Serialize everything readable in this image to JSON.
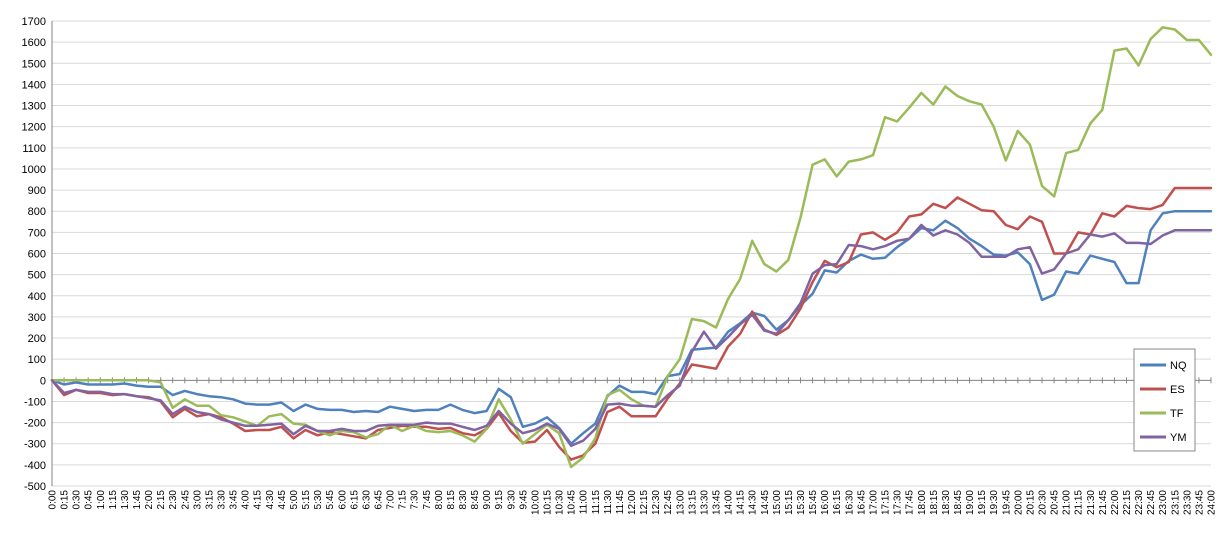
{
  "chart_data": {
    "type": "line",
    "title": "",
    "xlabel": "",
    "ylabel": "",
    "ylim": [
      -500,
      1700
    ],
    "ytick_step": 100,
    "grid": "horizontal",
    "legend_position": "right",
    "x": [
      "0:00",
      "0:15",
      "0:30",
      "0:45",
      "1:00",
      "1:15",
      "1:30",
      "1:45",
      "2:00",
      "2:15",
      "2:30",
      "2:45",
      "3:00",
      "3:15",
      "3:30",
      "3:45",
      "4:00",
      "4:15",
      "4:30",
      "4:45",
      "5:00",
      "5:15",
      "5:30",
      "5:45",
      "6:00",
      "6:15",
      "6:30",
      "6:45",
      "7:00",
      "7:15",
      "7:30",
      "7:45",
      "8:00",
      "8:15",
      "8:30",
      "8:45",
      "9:00",
      "9:15",
      "9:30",
      "9:45",
      "10:00",
      "10:15",
      "10:30",
      "10:45",
      "11:00",
      "11:15",
      "11:30",
      "11:45",
      "12:00",
      "12:15",
      "12:30",
      "12:45",
      "13:00",
      "13:15",
      "13:30",
      "13:45",
      "14:00",
      "14:15",
      "14:30",
      "14:45",
      "15:00",
      "15:15",
      "15:30",
      "15:45",
      "16:00",
      "16:15",
      "16:30",
      "16:45",
      "17:00",
      "17:15",
      "17:30",
      "17:45",
      "18:00",
      "18:15",
      "18:30",
      "18:45",
      "19:00",
      "19:15",
      "19:30",
      "19:45",
      "20:00",
      "20:15",
      "20:30",
      "20:45",
      "21:00",
      "21:15",
      "21:30",
      "21:45",
      "22:00",
      "22:15",
      "22:30",
      "22:45",
      "23:00",
      "23:15",
      "23:30",
      "23:45",
      "24:00"
    ],
    "series": [
      {
        "name": "NQ",
        "color": "#4F81BD",
        "values": [
          0,
          -20,
          -10,
          -20,
          -20,
          -20,
          -15,
          -25,
          -30,
          -30,
          -70,
          -50,
          -65,
          -75,
          -80,
          -90,
          -110,
          -115,
          -115,
          -105,
          -145,
          -115,
          -135,
          -140,
          -140,
          -150,
          -145,
          -150,
          -125,
          -135,
          -145,
          -140,
          -140,
          -115,
          -140,
          -155,
          -145,
          -40,
          -80,
          -220,
          -205,
          -175,
          -225,
          -300,
          -250,
          -205,
          -75,
          -25,
          -55,
          -55,
          -65,
          20,
          30,
          145,
          150,
          155,
          230,
          270,
          320,
          305,
          240,
          285,
          355,
          410,
          520,
          510,
          565,
          595,
          575,
          580,
          630,
          670,
          720,
          710,
          755,
          720,
          670,
          635,
          595,
          590,
          605,
          550,
          380,
          405,
          515,
          505,
          590,
          575,
          560,
          460,
          460,
          710,
          790,
          800,
          800,
          800,
          800
        ]
      },
      {
        "name": "ES",
        "color": "#C0504D",
        "values": [
          0,
          -70,
          -45,
          -60,
          -60,
          -70,
          -65,
          -75,
          -80,
          -100,
          -175,
          -135,
          -170,
          -160,
          -175,
          -205,
          -240,
          -235,
          -235,
          -220,
          -275,
          -235,
          -260,
          -245,
          -255,
          -265,
          -275,
          -235,
          -225,
          -215,
          -220,
          -220,
          -230,
          -225,
          -250,
          -260,
          -230,
          -155,
          -240,
          -295,
          -290,
          -235,
          -315,
          -375,
          -355,
          -300,
          -150,
          -125,
          -170,
          -170,
          -170,
          -85,
          -15,
          75,
          65,
          55,
          160,
          220,
          325,
          240,
          215,
          250,
          340,
          465,
          565,
          535,
          560,
          690,
          700,
          665,
          700,
          775,
          785,
          835,
          815,
          865,
          835,
          805,
          800,
          735,
          715,
          775,
          750,
          600,
          600,
          700,
          690,
          790,
          775,
          825,
          815,
          810,
          830,
          910,
          910,
          910,
          910
        ]
      },
      {
        "name": "TF",
        "color": "#9BBB59",
        "values": [
          0,
          0,
          0,
          0,
          0,
          0,
          0,
          0,
          0,
          -10,
          -130,
          -90,
          -120,
          -120,
          -165,
          -175,
          -195,
          -215,
          -170,
          -160,
          -205,
          -210,
          -240,
          -260,
          -240,
          -245,
          -270,
          -255,
          -210,
          -240,
          -215,
          -240,
          -245,
          -240,
          -260,
          -290,
          -230,
          -90,
          -185,
          -300,
          -255,
          -210,
          -250,
          -410,
          -365,
          -275,
          -70,
          -45,
          -90,
          -120,
          -125,
          20,
          100,
          290,
          280,
          250,
          385,
          480,
          660,
          550,
          515,
          570,
          770,
          1020,
          1045,
          965,
          1035,
          1045,
          1065,
          1245,
          1225,
          1290,
          1360,
          1305,
          1390,
          1345,
          1320,
          1305,
          1200,
          1040,
          1180,
          1115,
          920,
          870,
          1075,
          1090,
          1215,
          1280,
          1560,
          1570,
          1490,
          1615,
          1670,
          1660,
          1610,
          1610,
          1540
        ]
      },
      {
        "name": "YM",
        "color": "#8064A2",
        "values": [
          0,
          -60,
          -45,
          -55,
          -55,
          -65,
          -65,
          -75,
          -85,
          -95,
          -160,
          -125,
          -150,
          -160,
          -185,
          -200,
          -215,
          -215,
          -210,
          -205,
          -255,
          -215,
          -240,
          -240,
          -230,
          -240,
          -240,
          -215,
          -210,
          -210,
          -210,
          -200,
          -205,
          -205,
          -220,
          -235,
          -215,
          -145,
          -205,
          -250,
          -235,
          -205,
          -230,
          -310,
          -285,
          -230,
          -115,
          -110,
          -120,
          -120,
          -125,
          -70,
          -25,
          135,
          230,
          150,
          205,
          265,
          310,
          235,
          220,
          285,
          365,
          505,
          545,
          550,
          640,
          635,
          620,
          635,
          660,
          670,
          735,
          685,
          710,
          690,
          650,
          585,
          585,
          585,
          620,
          630,
          505,
          525,
          600,
          620,
          690,
          680,
          695,
          650,
          650,
          645,
          685,
          710,
          710,
          710,
          710
        ]
      }
    ]
  }
}
